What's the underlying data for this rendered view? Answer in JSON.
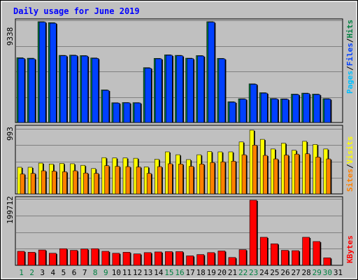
{
  "chart_data": {
    "type": "bar",
    "title": "Daily usage for June 2019",
    "days": [
      "1",
      "2",
      "3",
      "4",
      "5",
      "6",
      "7",
      "8",
      "9",
      "10",
      "11",
      "12",
      "13",
      "14",
      "15",
      "16",
      "17",
      "18",
      "19",
      "20",
      "21",
      "22",
      "23",
      "24",
      "25",
      "26",
      "27",
      "28",
      "29",
      "30",
      "31"
    ],
    "weekend_days": [
      1,
      2,
      8,
      9,
      15,
      16,
      22,
      23,
      29,
      30
    ],
    "panels": [
      {
        "id": "hits-files-pages",
        "ymax_label": "9338",
        "ymax": 9338,
        "legend": [
          "Pages",
          "/",
          "Files",
          "/",
          "Hits"
        ],
        "legend_colors": [
          "#00c0ff",
          "#000000",
          "#0040ff",
          "#000000",
          "#008040"
        ],
        "series": [
          {
            "name": "Hits",
            "color": "#008040",
            "values": [
              6000,
              5960,
              9338,
              9250,
              6220,
              6240,
              6200,
              5980,
              3020,
              1830,
              1850,
              1840,
              5080,
              5940,
              6270,
              6220,
              5960,
              6200,
              9338,
              5940,
              1920,
              2200,
              3580,
              2760,
              2220,
              2190,
              2630,
              2720,
              2630,
              2210
            ]
          },
          {
            "name": "Files",
            "color": "#0040ff",
            "values": [
              5940,
              5900,
              9300,
              9200,
              6180,
              6200,
              6160,
              5940,
              2980,
              1800,
              1820,
              1810,
              5030,
              5900,
              6230,
              6180,
              5920,
              6160,
              9300,
              5900,
              1880,
              2160,
              3540,
              2720,
              2180,
              2150,
              2590,
              2680,
              2590,
              2170
            ]
          },
          {
            "name": "Pages",
            "color": "#00c0ff",
            "values": [
              0,
              0,
              0,
              0,
              0,
              0,
              0,
              0,
              0,
              0,
              0,
              0,
              0,
              0,
              0,
              0,
              0,
              0,
              0,
              0,
              0,
              0,
              0,
              0,
              0,
              0,
              0,
              0,
              0,
              0
            ]
          }
        ]
      },
      {
        "id": "visits-sites",
        "ymax_label": "993",
        "ymax": 993,
        "legend": [
          "Sites",
          "/",
          "Visits"
        ],
        "legend_colors": [
          "#ff8000",
          "#000000",
          "#ffff00"
        ],
        "series": [
          {
            "name": "Visits",
            "color": "#ffff00",
            "values": [
              415,
              415,
              480,
              465,
              475,
              470,
              445,
              395,
              565,
              560,
              560,
              555,
              420,
              540,
              655,
              610,
              535,
              610,
              660,
              655,
              655,
              810,
              993,
              850,
              700,
              790,
              680,
              820,
              770,
              700
            ]
          },
          {
            "name": "Sites",
            "color": "#ff8000",
            "values": [
              310,
              320,
              360,
              355,
              345,
              360,
              325,
              320,
              440,
              430,
              425,
              420,
              320,
              425,
              470,
              465,
              430,
              465,
              490,
              500,
              510,
              610,
              760,
              600,
              545,
              605,
              620,
              625,
              575,
              545
            ]
          }
        ]
      },
      {
        "id": "kbytes",
        "ymax_label": "199712",
        "ymax": 199712,
        "legend": [
          "KBytes"
        ],
        "legend_colors": [
          "#ff0000"
        ],
        "series": [
          {
            "name": "KBytes",
            "color": "#ff0000",
            "values": [
              43000,
              40000,
              47000,
              37000,
              51000,
              46000,
              50000,
              51000,
              43000,
              37000,
              40000,
              35000,
              39000,
              41000,
              42000,
              42000,
              29000,
              33000,
              39000,
              44000,
              24000,
              48000,
              199712,
              86000,
              66000,
              46000,
              45000,
              86000,
              73000,
              23000
            ]
          }
        ]
      }
    ]
  }
}
